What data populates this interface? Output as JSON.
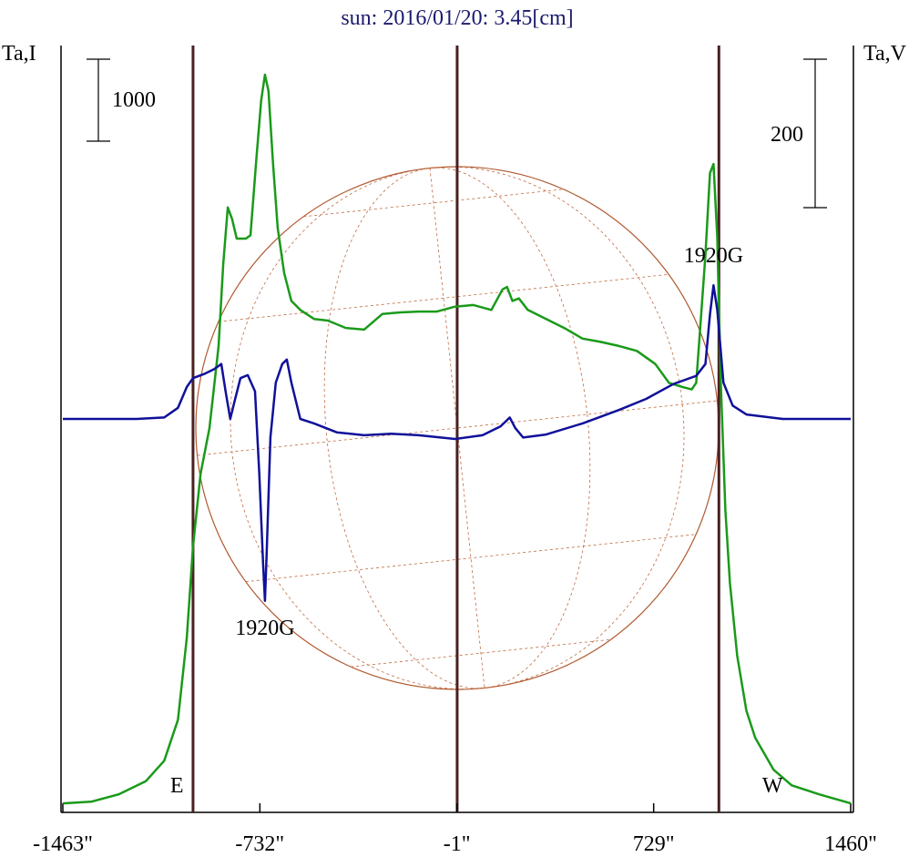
{
  "chart_data": {
    "type": "line",
    "title": "sun: 2016/01/20: 3.45[cm]",
    "ylabel": "Ta,I",
    "y2label": "Ta,V",
    "xlim": [
      -1463,
      1460
    ],
    "xticks": [
      {
        "value": -1463,
        "label": "-1463\""
      },
      {
        "value": -732,
        "label": "-732\""
      },
      {
        "value": -1,
        "label": "-1\""
      },
      {
        "value": 729,
        "label": "729\""
      },
      {
        "value": 1460,
        "label": "1460\""
      }
    ],
    "ylim": [
      0,
      9356
    ],
    "y2lim": [
      -530,
      503
    ],
    "vlines": [
      -980,
      0,
      971
    ],
    "scale_bars": [
      {
        "value": 1000,
        "axis": "y"
      },
      {
        "value": 200,
        "axis": "y2"
      }
    ],
    "annotations": [
      {
        "text": "1920G",
        "x": -713
      },
      {
        "text": "1920G",
        "x": 951
      },
      {
        "text": "E",
        "x": -1040
      },
      {
        "text": "W",
        "x": 1170
      }
    ],
    "series": [
      {
        "name": "I",
        "color": "#1a9a1a",
        "axis": "y",
        "x": [
          -1463,
          -1358,
          -1256,
          -1155,
          -1087,
          -1036,
          -1003,
          -980,
          -952,
          -919,
          -885,
          -868,
          -851,
          -835,
          -818,
          -784,
          -767,
          -744,
          -727,
          -713,
          -700,
          -683,
          -666,
          -642,
          -615,
          -582,
          -531,
          -480,
          -413,
          -345,
          -278,
          -210,
          -143,
          -75,
          -8,
          60,
          127,
          168,
          185,
          205,
          229,
          262,
          330,
          397,
          465,
          532,
          600,
          667,
          735,
          786,
          836,
          870,
          887,
          904,
          921,
          938,
          951,
          965,
          978,
          995,
          1012,
          1039,
          1073,
          1106,
          1174,
          1241,
          1343,
          1460
        ],
        "values": [
          110,
          130,
          220,
          380,
          630,
          1130,
          2130,
          3240,
          4130,
          4690,
          5690,
          6690,
          7380,
          7240,
          7000,
          7000,
          7040,
          8020,
          8690,
          9000,
          8800,
          7910,
          7130,
          6580,
          6240,
          6130,
          6020,
          6000,
          5910,
          5890,
          6080,
          6100,
          6110,
          6110,
          6170,
          6190,
          6130,
          6380,
          6410,
          6240,
          6270,
          6130,
          6020,
          5910,
          5780,
          5740,
          5690,
          5630,
          5470,
          5240,
          5190,
          5160,
          5240,
          6020,
          6800,
          7800,
          7910,
          7020,
          5240,
          3690,
          2800,
          1910,
          1240,
          910,
          520,
          330,
          220,
          110
        ]
      },
      {
        "name": "V",
        "color": "#10109a",
        "axis": "y2",
        "x": [
          -1463,
          -1358,
          -1189,
          -1087,
          -1036,
          -1003,
          -980,
          -936,
          -902,
          -875,
          -859,
          -842,
          -825,
          -804,
          -777,
          -750,
          -734,
          -720,
          -713,
          -707,
          -693,
          -673,
          -649,
          -632,
          -615,
          -582,
          -531,
          -447,
          -345,
          -244,
          -143,
          -8,
          94,
          161,
          195,
          215,
          245,
          330,
          465,
          600,
          701,
          802,
          887,
          921,
          938,
          951,
          965,
          988,
          1022,
          1073,
          1208,
          1343,
          1460
        ],
        "values": [
          0,
          0,
          0,
          2,
          15,
          43,
          55,
          61,
          67,
          74,
          37,
          0,
          25,
          55,
          59,
          37,
          -74,
          -196,
          -245,
          -184,
          -25,
          49,
          74,
          80,
          49,
          0,
          -6,
          -18,
          -22,
          -20,
          -22,
          -27,
          -22,
          -10,
          2,
          -12,
          -25,
          -21,
          -6,
          12,
          27,
          47,
          58,
          74,
          141,
          180,
          147,
          49,
          18,
          6,
          0,
          0,
          0
        ]
      }
    ]
  }
}
